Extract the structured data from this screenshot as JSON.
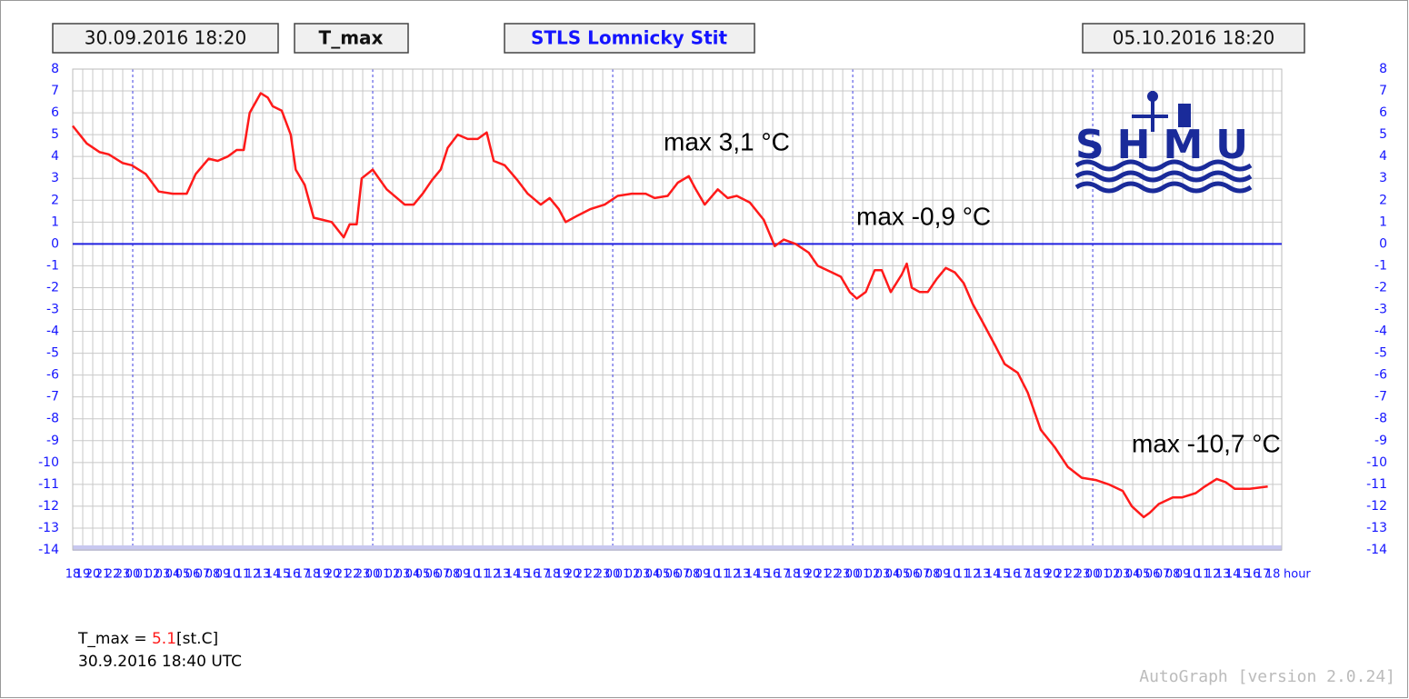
{
  "chart_data": {
    "type": "line",
    "header": {
      "start": "30.09.2016 18:20",
      "variable": "T_max",
      "station": "STLS Lomnicky Stit",
      "end": "05.10.2016 18:20"
    },
    "logo": "SHMU",
    "annotations": [
      "max 3,1 °C",
      "max -0,9 °C",
      "max -10,7 °C"
    ],
    "x_label": "hour",
    "readout": {
      "label": "T_max =",
      "value": 5.1,
      "unit": "[st.C]",
      "time": "30.9.2016 18:40 UTC"
    },
    "footer": "AutoGraph [version 2.0.24]",
    "grid": true,
    "zero_line": true,
    "series": [
      {
        "name": "T_max",
        "color": "#ff1a1a",
        "x": [
          0,
          1.4,
          2.7,
          3.6,
          5,
          5.9,
          7.3,
          8.6,
          10,
          11.4,
          12.3,
          13.6,
          14.5,
          15.5,
          16.4,
          17.1,
          17.7,
          18.8,
          19.5,
          20,
          20.9,
          21.8,
          22.3,
          23.2,
          24.1,
          25,
          25.9,
          27.1,
          27.7,
          28.4,
          28.9,
          30,
          31.4,
          33.2,
          34.1,
          35,
          35.9,
          36.8,
          37.5,
          38.5,
          39.5,
          40.5,
          41.4,
          42.1,
          43.2,
          44.5,
          45.5,
          46.8,
          47.7,
          48.6,
          49.3,
          50.5,
          51.8,
          53.2,
          54.5,
          55.9,
          57.3,
          58.2,
          59.5,
          60.5,
          61.6,
          62.3,
          63.2,
          64.5,
          65.5,
          66.4,
          67.7,
          69.1,
          70.2,
          71.1,
          72.3,
          73.6,
          74.5,
          75.9,
          76.8,
          77.7,
          78.4,
          79.3,
          80.2,
          80.9,
          81.8,
          82.9,
          83.4,
          83.9,
          84.7,
          85.5,
          86.4,
          87.3,
          88.2,
          89.1,
          90,
          90.9,
          92.3,
          93.2,
          94.5,
          95.5,
          96.8,
          98.2,
          99.5,
          100.9,
          102.3,
          103.6,
          105,
          105.9,
          107.1,
          107.7,
          108.6,
          110,
          110.9,
          112.3,
          113.2,
          114.4,
          115.3,
          116.2,
          117.7,
          119.5
        ],
        "values": [
          5.4,
          4.6,
          4.2,
          4.1,
          3.7,
          3.6,
          3.2,
          2.4,
          2.3,
          2.3,
          3.2,
          3.9,
          3.8,
          4.0,
          4.3,
          4.3,
          6.0,
          6.9,
          6.7,
          6.3,
          6.1,
          5.0,
          3.4,
          2.7,
          1.2,
          1.1,
          1.0,
          0.3,
          0.9,
          0.9,
          3.0,
          3.4,
          2.5,
          1.8,
          1.8,
          2.3,
          2.9,
          3.4,
          4.4,
          5.0,
          4.8,
          4.8,
          5.1,
          3.8,
          3.6,
          2.9,
          2.3,
          1.8,
          2.1,
          1.6,
          1.0,
          1.3,
          1.6,
          1.8,
          2.2,
          2.3,
          2.3,
          2.1,
          2.2,
          2.8,
          3.1,
          2.5,
          1.8,
          2.5,
          2.1,
          2.2,
          1.9,
          1.1,
          -0.1,
          0.2,
          0.0,
          -0.4,
          -1.0,
          -1.3,
          -1.5,
          -2.2,
          -2.5,
          -2.2,
          -1.2,
          -1.2,
          -2.2,
          -1.4,
          -0.9,
          -2.0,
          -2.2,
          -2.2,
          -1.6,
          -1.1,
          -1.3,
          -1.8,
          -2.75,
          -3.5,
          -4.7,
          -5.5,
          -5.9,
          -6.8,
          -8.5,
          -9.3,
          -10.2,
          -10.7,
          -10.8,
          -11.0,
          -11.3,
          -12.0,
          -12.5,
          -12.3,
          -11.9,
          -11.6,
          -11.6,
          -11.4,
          -11.1,
          -10.75,
          -10.9,
          -11.2,
          -11.2,
          -11.1
        ]
      }
    ],
    "xlim": [
      0,
      120.9
    ],
    "xticks": [
      {
        "value": 0,
        "label": "18"
      },
      {
        "value": 1,
        "label": "19"
      },
      {
        "value": 2,
        "label": "20"
      },
      {
        "value": 3,
        "label": "21"
      },
      {
        "value": 4,
        "label": "22"
      },
      {
        "value": 5,
        "label": "23"
      },
      {
        "value": 6,
        "label": "00"
      },
      {
        "value": 7,
        "label": "01"
      },
      {
        "value": 8,
        "label": "02"
      },
      {
        "value": 9,
        "label": "03"
      },
      {
        "value": 10,
        "label": "04"
      },
      {
        "value": 11,
        "label": "05"
      },
      {
        "value": 12,
        "label": "06"
      },
      {
        "value": 13,
        "label": "07"
      },
      {
        "value": 14,
        "label": "08"
      },
      {
        "value": 15,
        "label": "09"
      },
      {
        "value": 16,
        "label": "10"
      },
      {
        "value": 17,
        "label": "11"
      },
      {
        "value": 18,
        "label": "12"
      },
      {
        "value": 19,
        "label": "13"
      },
      {
        "value": 20,
        "label": "14"
      },
      {
        "value": 21,
        "label": "15"
      },
      {
        "value": 22,
        "label": "16"
      },
      {
        "value": 23,
        "label": "17"
      },
      {
        "value": 24,
        "label": "18"
      },
      {
        "value": 25,
        "label": "19"
      },
      {
        "value": 26,
        "label": "20"
      },
      {
        "value": 27,
        "label": "21"
      },
      {
        "value": 28,
        "label": "22"
      },
      {
        "value": 29,
        "label": "23"
      },
      {
        "value": 30,
        "label": "00"
      },
      {
        "value": 31,
        "label": "01"
      },
      {
        "value": 32,
        "label": "02"
      },
      {
        "value": 33,
        "label": "03"
      },
      {
        "value": 34,
        "label": "04"
      },
      {
        "value": 35,
        "label": "05"
      },
      {
        "value": 36,
        "label": "06"
      },
      {
        "value": 37,
        "label": "07"
      },
      {
        "value": 38,
        "label": "08"
      },
      {
        "value": 39,
        "label": "09"
      },
      {
        "value": 40,
        "label": "10"
      },
      {
        "value": 41,
        "label": "11"
      },
      {
        "value": 42,
        "label": "12"
      },
      {
        "value": 43,
        "label": "13"
      },
      {
        "value": 44,
        "label": "14"
      },
      {
        "value": 45,
        "label": "15"
      },
      {
        "value": 46,
        "label": "16"
      },
      {
        "value": 47,
        "label": "17"
      },
      {
        "value": 48,
        "label": "18"
      },
      {
        "value": 49,
        "label": "19"
      },
      {
        "value": 50,
        "label": "20"
      },
      {
        "value": 51,
        "label": "21"
      },
      {
        "value": 52,
        "label": "22"
      },
      {
        "value": 53,
        "label": "23"
      },
      {
        "value": 54,
        "label": "00"
      },
      {
        "value": 55,
        "label": "01"
      },
      {
        "value": 56,
        "label": "02"
      },
      {
        "value": 57,
        "label": "03"
      },
      {
        "value": 58,
        "label": "04"
      },
      {
        "value": 59,
        "label": "05"
      },
      {
        "value": 60,
        "label": "06"
      },
      {
        "value": 61,
        "label": "07"
      },
      {
        "value": 62,
        "label": "08"
      },
      {
        "value": 63,
        "label": "09"
      },
      {
        "value": 64,
        "label": "10"
      },
      {
        "value": 65,
        "label": "11"
      },
      {
        "value": 66,
        "label": "12"
      },
      {
        "value": 67,
        "label": "13"
      },
      {
        "value": 68,
        "label": "14"
      },
      {
        "value": 69,
        "label": "15"
      },
      {
        "value": 70,
        "label": "16"
      },
      {
        "value": 71,
        "label": "17"
      },
      {
        "value": 72,
        "label": "18"
      },
      {
        "value": 73,
        "label": "19"
      },
      {
        "value": 74,
        "label": "20"
      },
      {
        "value": 75,
        "label": "21"
      },
      {
        "value": 76,
        "label": "22"
      },
      {
        "value": 77,
        "label": "23"
      },
      {
        "value": 78,
        "label": "00"
      },
      {
        "value": 79,
        "label": "01"
      },
      {
        "value": 80,
        "label": "02"
      },
      {
        "value": 81,
        "label": "03"
      },
      {
        "value": 82,
        "label": "04"
      },
      {
        "value": 83,
        "label": "05"
      },
      {
        "value": 84,
        "label": "06"
      },
      {
        "value": 85,
        "label": "07"
      },
      {
        "value": 86,
        "label": "08"
      },
      {
        "value": 87,
        "label": "09"
      },
      {
        "value": 88,
        "label": "10"
      },
      {
        "value": 89,
        "label": "11"
      },
      {
        "value": 90,
        "label": "12"
      },
      {
        "value": 91,
        "label": "13"
      },
      {
        "value": 92,
        "label": "14"
      },
      {
        "value": 93,
        "label": "15"
      },
      {
        "value": 94,
        "label": "16"
      },
      {
        "value": 95,
        "label": "17"
      },
      {
        "value": 96,
        "label": "18"
      },
      {
        "value": 97,
        "label": "19"
      },
      {
        "value": 98,
        "label": "20"
      },
      {
        "value": 99,
        "label": "21"
      },
      {
        "value": 100,
        "label": "22"
      },
      {
        "value": 101,
        "label": "23"
      },
      {
        "value": 102,
        "label": "00"
      },
      {
        "value": 103,
        "label": "01"
      },
      {
        "value": 104,
        "label": "02"
      },
      {
        "value": 105,
        "label": "03"
      },
      {
        "value": 106,
        "label": "04"
      },
      {
        "value": 107,
        "label": "05"
      },
      {
        "value": 108,
        "label": "06"
      },
      {
        "value": 109,
        "label": "07"
      },
      {
        "value": 110,
        "label": "08"
      },
      {
        "value": 111,
        "label": "09"
      },
      {
        "value": 112,
        "label": "10"
      },
      {
        "value": 113,
        "label": "11"
      },
      {
        "value": 114,
        "label": "12"
      },
      {
        "value": 115,
        "label": "13"
      },
      {
        "value": 116,
        "label": "14"
      },
      {
        "value": 117,
        "label": "15"
      },
      {
        "value": 118,
        "label": "16"
      },
      {
        "value": 119,
        "label": "17"
      },
      {
        "value": 120,
        "label": "18"
      }
    ],
    "ylim": [
      -14,
      8
    ],
    "yticks": [
      8,
      7,
      6,
      5,
      4,
      3,
      2,
      1,
      0,
      -1,
      -2,
      -3,
      -4,
      -5,
      -6,
      -7,
      -8,
      -9,
      -10,
      -11,
      -12,
      -13,
      -14
    ]
  }
}
